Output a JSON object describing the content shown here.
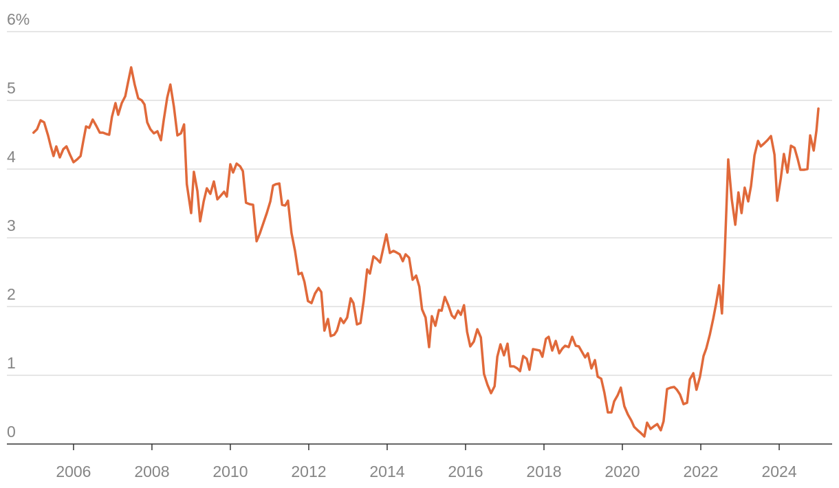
{
  "chart_data": {
    "type": "line",
    "x": [
      2004.98,
      2005.07,
      2005.16,
      2005.25,
      2005.35,
      2005.42,
      2005.49,
      2005.56,
      2005.65,
      2005.74,
      2005.82,
      2005.91,
      2006.0,
      2006.09,
      2006.18,
      2006.25,
      2006.32,
      2006.4,
      2006.49,
      2006.58,
      2006.67,
      2006.75,
      2006.84,
      2006.91,
      2006.98,
      2007.07,
      2007.14,
      2007.23,
      2007.32,
      2007.39,
      2007.47,
      2007.56,
      2007.65,
      2007.74,
      2007.81,
      2007.88,
      2007.96,
      2008.05,
      2008.14,
      2008.23,
      2008.3,
      2008.39,
      2008.47,
      2008.56,
      2008.65,
      2008.74,
      2008.82,
      2008.89,
      2009.0,
      2009.07,
      2009.16,
      2009.23,
      2009.32,
      2009.4,
      2009.49,
      2009.58,
      2009.67,
      2009.75,
      2009.84,
      2009.91,
      2010.0,
      2010.07,
      2010.16,
      2010.25,
      2010.32,
      2010.4,
      2010.49,
      2010.58,
      2010.67,
      2010.75,
      2010.84,
      2010.93,
      2011.02,
      2011.09,
      2011.16,
      2011.25,
      2011.32,
      2011.4,
      2011.47,
      2011.56,
      2011.65,
      2011.74,
      2011.82,
      2011.89,
      2011.98,
      2012.07,
      2012.16,
      2012.25,
      2012.32,
      2012.4,
      2012.49,
      2012.56,
      2012.65,
      2012.72,
      2012.81,
      2012.89,
      2012.98,
      2013.07,
      2013.14,
      2013.23,
      2013.32,
      2013.4,
      2013.49,
      2013.56,
      2013.65,
      2013.74,
      2013.82,
      2013.89,
      2013.98,
      2014.07,
      2014.16,
      2014.23,
      2014.32,
      2014.4,
      2014.47,
      2014.56,
      2014.65,
      2014.74,
      2014.82,
      2014.89,
      2014.98,
      2015.07,
      2015.14,
      2015.23,
      2015.32,
      2015.39,
      2015.47,
      2015.56,
      2015.65,
      2015.72,
      2015.81,
      2015.88,
      2015.96,
      2016.04,
      2016.12,
      2016.21,
      2016.3,
      2016.39,
      2016.47,
      2016.56,
      2016.65,
      2016.74,
      2016.81,
      2016.89,
      2016.98,
      2017.07,
      2017.14,
      2017.23,
      2017.32,
      2017.39,
      2017.47,
      2017.56,
      2017.63,
      2017.72,
      2017.81,
      2017.89,
      2017.96,
      2018.05,
      2018.12,
      2018.21,
      2018.3,
      2018.39,
      2018.47,
      2018.54,
      2018.63,
      2018.72,
      2018.81,
      2018.89,
      2018.96,
      2019.05,
      2019.12,
      2019.21,
      2019.3,
      2019.37,
      2019.46,
      2019.54,
      2019.63,
      2019.72,
      2019.79,
      2019.88,
      2019.96,
      2020.05,
      2020.14,
      2020.23,
      2020.3,
      2020.39,
      2020.47,
      2020.56,
      2020.63,
      2020.72,
      2020.81,
      2020.89,
      2020.98,
      2021.05,
      2021.14,
      2021.23,
      2021.32,
      2021.39,
      2021.47,
      2021.56,
      2021.65,
      2021.72,
      2021.81,
      2021.89,
      2021.98,
      2022.07,
      2022.14,
      2022.23,
      2022.32,
      2022.39,
      2022.47,
      2022.54,
      2022.61,
      2022.7,
      2022.79,
      2022.88,
      2022.96,
      2023.04,
      2023.12,
      2023.21,
      2023.28,
      2023.37,
      2023.46,
      2023.53,
      2023.61,
      2023.7,
      2023.79,
      2023.88,
      2023.95,
      2024.04,
      2024.12,
      2024.21,
      2024.3,
      2024.39,
      2024.47,
      2024.54,
      2024.63,
      2024.72,
      2024.79,
      2024.88,
      2024.95,
      2025.0
    ],
    "series": [
      {
        "color": "#e0693a",
        "values": [
          4.53,
          4.58,
          4.71,
          4.68,
          4.49,
          4.33,
          4.19,
          4.33,
          4.17,
          4.29,
          4.33,
          4.21,
          4.1,
          4.14,
          4.19,
          4.41,
          4.62,
          4.6,
          4.72,
          4.63,
          4.53,
          4.53,
          4.51,
          4.5,
          4.76,
          4.96,
          4.79,
          4.96,
          5.06,
          5.26,
          5.48,
          5.23,
          5.03,
          5.0,
          4.94,
          4.68,
          4.58,
          4.52,
          4.55,
          4.42,
          4.71,
          5.04,
          5.23,
          4.91,
          4.49,
          4.52,
          4.65,
          3.78,
          3.36,
          3.96,
          3.68,
          3.24,
          3.53,
          3.72,
          3.64,
          3.82,
          3.56,
          3.61,
          3.67,
          3.6,
          4.07,
          3.95,
          4.08,
          4.04,
          3.97,
          3.51,
          3.49,
          3.48,
          2.95,
          3.06,
          3.21,
          3.36,
          3.53,
          3.76,
          3.78,
          3.79,
          3.48,
          3.47,
          3.54,
          3.07,
          2.81,
          2.47,
          2.49,
          2.36,
          2.08,
          2.05,
          2.19,
          2.27,
          2.21,
          1.65,
          1.82,
          1.57,
          1.59,
          1.65,
          1.83,
          1.76,
          1.84,
          2.12,
          2.05,
          1.74,
          1.76,
          2.08,
          2.54,
          2.48,
          2.73,
          2.69,
          2.64,
          2.82,
          3.05,
          2.78,
          2.81,
          2.79,
          2.76,
          2.66,
          2.76,
          2.71,
          2.39,
          2.45,
          2.29,
          1.96,
          1.84,
          1.41,
          1.86,
          1.72,
          1.95,
          1.94,
          2.14,
          2.02,
          1.87,
          1.83,
          1.94,
          1.88,
          2.02,
          1.63,
          1.42,
          1.49,
          1.67,
          1.55,
          1.02,
          0.86,
          0.74,
          0.84,
          1.27,
          1.45,
          1.29,
          1.46,
          1.13,
          1.13,
          1.1,
          1.06,
          1.28,
          1.24,
          1.08,
          1.38,
          1.37,
          1.36,
          1.27,
          1.53,
          1.56,
          1.36,
          1.5,
          1.32,
          1.39,
          1.43,
          1.41,
          1.56,
          1.43,
          1.42,
          1.35,
          1.26,
          1.32,
          1.1,
          1.22,
          0.98,
          0.95,
          0.75,
          0.46,
          0.46,
          0.62,
          0.71,
          0.82,
          0.55,
          0.43,
          0.34,
          0.25,
          0.2,
          0.16,
          0.11,
          0.31,
          0.22,
          0.26,
          0.29,
          0.2,
          0.33,
          0.8,
          0.82,
          0.83,
          0.79,
          0.72,
          0.58,
          0.6,
          0.94,
          1.03,
          0.79,
          0.98,
          1.28,
          1.39,
          1.59,
          1.83,
          2.04,
          2.31,
          1.9,
          2.76,
          4.14,
          3.56,
          3.19,
          3.66,
          3.36,
          3.73,
          3.53,
          3.75,
          4.2,
          4.41,
          4.33,
          4.37,
          4.42,
          4.48,
          4.21,
          3.54,
          3.86,
          4.22,
          3.95,
          4.34,
          4.31,
          4.15,
          3.99,
          3.99,
          4.0,
          4.49,
          4.27,
          4.56,
          4.88
        ]
      }
    ],
    "xlim": [
      2004.3,
      2025.35
    ],
    "xticks": [
      2006,
      2008,
      2010,
      2012,
      2014,
      2016,
      2018,
      2020,
      2022,
      2024
    ],
    "ylim": [
      0,
      6
    ],
    "yticks": [
      0,
      1,
      2,
      3,
      4,
      5,
      {
        "value": 6,
        "label": "6%"
      }
    ],
    "grid": true
  }
}
